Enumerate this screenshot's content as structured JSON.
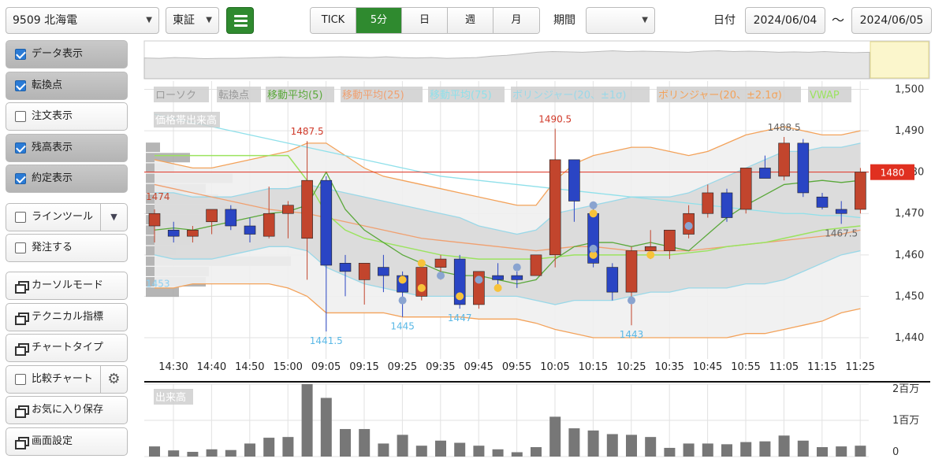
{
  "header": {
    "symbol": "9509 北海電",
    "market": "東証",
    "intervals": [
      "TICK",
      "5分",
      "日",
      "週",
      "月"
    ],
    "active_interval": "5分",
    "period_label": "期間",
    "period_value": "",
    "date_label": "日付",
    "date_from": "2024/06/04",
    "date_sep": "〜",
    "date_to": "2024/06/05"
  },
  "sidebar": {
    "items": [
      {
        "label": "データ表示",
        "type": "check",
        "checked": true
      },
      {
        "label": "転換点",
        "type": "check",
        "checked": true
      },
      {
        "label": "注文表示",
        "type": "check",
        "checked": false
      },
      {
        "label": "残高表示",
        "type": "check",
        "checked": true
      },
      {
        "label": "約定表示",
        "type": "check",
        "checked": true
      },
      {
        "label": "ラインツール",
        "type": "check-split",
        "checked": false
      },
      {
        "label": "発注する",
        "type": "check",
        "checked": false
      },
      {
        "label": "カーソルモード",
        "type": "window"
      },
      {
        "label": "テクニカル指標",
        "type": "window"
      },
      {
        "label": "チャートタイプ",
        "type": "window"
      },
      {
        "label": "比較チャート",
        "type": "check-gear",
        "checked": false
      },
      {
        "label": "お気に入り保存",
        "type": "window"
      },
      {
        "label": "画面設定",
        "type": "window"
      }
    ]
  },
  "colors": {
    "up": "#c2452d",
    "down": "#2a45c4",
    "ma5": "#5aa83a",
    "ma25": "#f0a070",
    "ma75": "#8fe0ea",
    "bb20": "#9ad8e8",
    "bb21": "#f3a25a",
    "vwap": "#9be35f",
    "price_line": "#e03020",
    "active": "#2f8a2f"
  },
  "chart_data": {
    "type": "candlestick",
    "legend": [
      {
        "label": "ローソク",
        "color": "#9a9a9a"
      },
      {
        "label": "転換点",
        "color": "#9a9a9a"
      },
      {
        "label": "移動平均(5)",
        "color": "#5aa83a"
      },
      {
        "label": "移動平均(25)",
        "color": "#f0a070"
      },
      {
        "label": "移動平均(75)",
        "color": "#8fe0ea"
      },
      {
        "label": "ボリンジャー(20、±1σ)",
        "color": "#9ad8e8"
      },
      {
        "label": "ボリンジャー(20、±2.1σ)",
        "color": "#f3a25a"
      },
      {
        "label": "VWAP",
        "color": "#9be35f"
      }
    ],
    "volume_profile_label": "価格帯出来高",
    "volume_label": "出来高",
    "ylim": [
      1436,
      1502
    ],
    "y_ticks": [
      1500,
      1490,
      1480,
      1470,
      1460,
      1450,
      1440
    ],
    "y_tick_labels": [
      "1,500",
      "1,490",
      "1,480",
      "1,470",
      "1,460",
      "1,450",
      "1,440"
    ],
    "current_price": 1480,
    "current_price_label": "1480",
    "volume_ticks": [
      {
        "v": 2000000,
        "label": "2百万"
      },
      {
        "v": 1000000,
        "label": "1百万"
      },
      {
        "v": 0,
        "label": "0"
      }
    ],
    "volume_max": 2000000,
    "x_labels": [
      "14:30",
      "14:40",
      "14:50",
      "15:00",
      "09:05",
      "09:15",
      "09:25",
      "09:35",
      "09:45",
      "09:55",
      "10:05",
      "10:15",
      "10:25",
      "10:35",
      "10:45",
      "10:55",
      "11:05",
      "11:15",
      "11:25"
    ],
    "candles": [
      {
        "o": 1467,
        "h": 1471,
        "l": 1463,
        "c": 1470
      },
      {
        "o": 1466,
        "h": 1468,
        "l": 1463,
        "c": 1464.5
      },
      {
        "o": 1464.5,
        "h": 1467,
        "l": 1463,
        "c": 1466
      },
      {
        "o": 1468,
        "h": 1471,
        "l": 1465,
        "c": 1471
      },
      {
        "o": 1471,
        "h": 1472,
        "l": 1466,
        "c": 1467
      },
      {
        "o": 1467,
        "h": 1469,
        "l": 1463,
        "c": 1465
      },
      {
        "o": 1464.5,
        "h": 1476.5,
        "l": 1464,
        "c": 1470
      },
      {
        "o": 1470,
        "h": 1473,
        "l": 1464,
        "c": 1472
      },
      {
        "o": 1464,
        "h": 1487.5,
        "l": 1454,
        "c": 1478
      },
      {
        "o": 1478,
        "h": 1479,
        "l": 1441.5,
        "c": 1457.5
      },
      {
        "o": 1458,
        "h": 1460,
        "l": 1450,
        "c": 1456
      },
      {
        "o": 1454,
        "h": 1458,
        "l": 1448,
        "c": 1458
      },
      {
        "o": 1457,
        "h": 1460,
        "l": 1451,
        "c": 1455
      },
      {
        "o": 1455,
        "h": 1456,
        "l": 1445,
        "c": 1451
      },
      {
        "o": 1450,
        "h": 1458,
        "l": 1449,
        "c": 1457
      },
      {
        "o": 1457,
        "h": 1460,
        "l": 1454,
        "c": 1459
      },
      {
        "o": 1459,
        "h": 1460,
        "l": 1447,
        "c": 1448
      },
      {
        "o": 1448,
        "h": 1456,
        "l": 1447,
        "c": 1456
      },
      {
        "o": 1455,
        "h": 1458,
        "l": 1452,
        "c": 1454
      },
      {
        "o": 1455,
        "h": 1456,
        "l": 1452,
        "c": 1454
      },
      {
        "o": 1455,
        "h": 1460,
        "l": 1455,
        "c": 1460
      },
      {
        "o": 1460,
        "h": 1490.5,
        "l": 1457,
        "c": 1483
      },
      {
        "o": 1483,
        "h": 1483,
        "l": 1468,
        "c": 1473
      },
      {
        "o": 1470,
        "h": 1472,
        "l": 1457,
        "c": 1458
      },
      {
        "o": 1457,
        "h": 1458,
        "l": 1449,
        "c": 1451
      },
      {
        "o": 1451,
        "h": 1462,
        "l": 1443,
        "c": 1461
      },
      {
        "o": 1461,
        "h": 1466,
        "l": 1459,
        "c": 1462
      },
      {
        "o": 1461,
        "h": 1466,
        "l": 1459,
        "c": 1466
      },
      {
        "o": 1465,
        "h": 1472,
        "l": 1464,
        "c": 1470
      },
      {
        "o": 1470,
        "h": 1477,
        "l": 1469,
        "c": 1475
      },
      {
        "o": 1475,
        "h": 1476,
        "l": 1468,
        "c": 1469
      },
      {
        "o": 1471,
        "h": 1481,
        "l": 1470,
        "c": 1481
      },
      {
        "o": 1481,
        "h": 1484,
        "l": 1479,
        "c": 1478.5
      },
      {
        "o": 1479,
        "h": 1488.5,
        "l": 1478,
        "c": 1487
      },
      {
        "o": 1487,
        "h": 1488,
        "l": 1474,
        "c": 1475
      },
      {
        "o": 1474,
        "h": 1475,
        "l": 1471,
        "c": 1471.5
      },
      {
        "o": 1471,
        "h": 1473,
        "l": 1467.5,
        "c": 1470
      },
      {
        "o": 1471,
        "h": 1481,
        "l": 1470,
        "c": 1480
      }
    ],
    "volumes": [
      280000,
      170000,
      130000,
      200000,
      180000,
      360000,
      520000,
      540000,
      2000000,
      1620000,
      760000,
      760000,
      360000,
      600000,
      300000,
      440000,
      380000,
      300000,
      200000,
      120000,
      260000,
      1100000,
      780000,
      720000,
      620000,
      600000,
      540000,
      240000,
      360000,
      360000,
      340000,
      400000,
      420000,
      580000,
      440000,
      260000,
      280000,
      300000
    ],
    "ma5": [
      1466,
      1466.5,
      1466,
      1467,
      1468,
      1469,
      1470,
      1470.5,
      1472,
      1480,
      1471,
      1466,
      1463,
      1460,
      1458,
      1456,
      1455,
      1455,
      1454,
      1453,
      1454,
      1459,
      1462,
      1463,
      1463,
      1462,
      1463,
      1462,
      1461,
      1465,
      1469,
      1472,
      1474.5,
      1477,
      1477.5,
      1478,
      1477.5,
      1478
    ],
    "ma25": [
      1477,
      1476,
      1475,
      1474,
      1473,
      1472,
      1471,
      1470.5,
      1470,
      1469,
      1468,
      1467,
      1466,
      1465,
      1464,
      1463.5,
      1463,
      1462.5,
      1462,
      1461.5,
      1461,
      1461.5,
      1462,
      1462,
      1461.5,
      1461,
      1461,
      1461,
      1461,
      1461.5,
      1462,
      1462.5,
      1463,
      1463.5,
      1464,
      1464.5,
      1465,
      1466
    ],
    "ma75": [
      1494,
      1493,
      1492,
      1491,
      1490,
      1489,
      1488,
      1487,
      1486,
      1485,
      1484,
      1483,
      1482,
      1481,
      1480,
      1479,
      1478.5,
      1478,
      1477.5,
      1477,
      1476.5,
      1476,
      1475.5,
      1475,
      1474.5,
      1474,
      1473.5,
      1473,
      1472.5,
      1472,
      1471.5,
      1471,
      1470.5,
      1470,
      1470,
      1469.5,
      1469.5,
      1469
    ],
    "vwap": [
      1484,
      1484,
      1484,
      1484,
      1484,
      1484,
      1484,
      1484,
      1478,
      1470,
      1466,
      1464,
      1463,
      1462,
      1461,
      1460,
      1459.5,
      1459,
      1459,
      1459,
      1459,
      1459.5,
      1460,
      1460,
      1460,
      1460,
      1460,
      1460,
      1460.5,
      1461,
      1462,
      1462.5,
      1463,
      1464,
      1465,
      1466,
      1466.5,
      1467
    ],
    "bb1_upper": [
      1475,
      1475,
      1474,
      1474,
      1474,
      1475,
      1476,
      1476,
      1477,
      1476,
      1475,
      1474,
      1473,
      1472,
      1471,
      1470,
      1469,
      1467,
      1466,
      1465,
      1466,
      1470,
      1471,
      1472,
      1473,
      1474,
      1474,
      1474,
      1475,
      1477,
      1479,
      1481,
      1483,
      1485,
      1485,
      1486,
      1486,
      1487
    ],
    "bb1_lower": [
      1460,
      1459,
      1459,
      1459,
      1460,
      1461,
      1462,
      1462,
      1461,
      1457,
      1455,
      1453,
      1452,
      1451,
      1450,
      1450,
      1450,
      1450,
      1450,
      1450,
      1449,
      1448,
      1449,
      1449,
      1449,
      1450,
      1451,
      1451,
      1452,
      1452,
      1452,
      1453,
      1453,
      1454,
      1456,
      1458,
      1460,
      1461
    ],
    "bb2_upper": [
      1483,
      1482,
      1481,
      1481,
      1482,
      1483,
      1484,
      1485,
      1487,
      1487,
      1484,
      1481,
      1479,
      1478,
      1477,
      1476,
      1475,
      1474,
      1473,
      1472,
      1472,
      1478,
      1482,
      1484,
      1485,
      1486,
      1486,
      1485,
      1484,
      1485,
      1487,
      1489,
      1490,
      1491,
      1490,
      1489,
      1489,
      1490
    ],
    "bb2_lower": [
      1452,
      1452,
      1453,
      1453,
      1453,
      1453,
      1453,
      1452,
      1450,
      1446,
      1446,
      1446,
      1446,
      1445,
      1445,
      1445,
      1445,
      1444.5,
      1444.5,
      1444.5,
      1443.5,
      1442,
      1441,
      1440,
      1440,
      1440,
      1440,
      1440,
      1440,
      1440,
      1440,
      1441,
      1441,
      1442,
      1443,
      1444,
      1446,
      1447
    ],
    "turning_points": [
      {
        "i": 8,
        "type": "high",
        "label": "1487.5"
      },
      {
        "i": 9,
        "type": "low",
        "label": "1441.5"
      },
      {
        "i": 13,
        "type": "low",
        "label": "1445"
      },
      {
        "i": 16,
        "type": "low",
        "label": "1447"
      },
      {
        "i": 21,
        "type": "high",
        "label": "1490.5"
      },
      {
        "i": 25,
        "type": "low",
        "label": "1443"
      },
      {
        "i": 33,
        "type": "high",
        "label": "1488.5"
      },
      {
        "i": 36,
        "type": "low",
        "label": "1467.5"
      }
    ],
    "edge_labels": [
      {
        "y": 1474,
        "label": "1474",
        "color": "#c2452d"
      },
      {
        "y": 1453,
        "label": "1453",
        "color": "#8ccff0"
      }
    ],
    "trade_markers_buy": [
      {
        "i": 13,
        "y": 1454
      },
      {
        "i": 14,
        "y": 1458
      },
      {
        "i": 14,
        "y": 1452
      },
      {
        "i": 16,
        "y": 1450
      },
      {
        "i": 18,
        "y": 1452
      },
      {
        "i": 23,
        "y": 1470
      },
      {
        "i": 23,
        "y": 1460
      },
      {
        "i": 26,
        "y": 1460
      }
    ],
    "trade_markers_sell": [
      {
        "i": 13,
        "y": 1449
      },
      {
        "i": 15,
        "y": 1455
      },
      {
        "i": 17,
        "y": 1454
      },
      {
        "i": 19,
        "y": 1457
      },
      {
        "i": 23,
        "y": 1472
      },
      {
        "i": 23,
        "y": 1461.5
      },
      {
        "i": 25,
        "y": 1449
      },
      {
        "i": 28,
        "y": 1467
      }
    ],
    "volume_profile": [
      {
        "price": 1486,
        "v": 0.09
      },
      {
        "price": 1483.5,
        "v": 0.28
      },
      {
        "price": 1481,
        "v": 0.18
      },
      {
        "price": 1478.5,
        "v": 0.55
      },
      {
        "price": 1476,
        "v": 0.38
      },
      {
        "price": 1473.5,
        "v": 0.46
      },
      {
        "price": 1471,
        "v": 0.74
      },
      {
        "price": 1468.5,
        "v": 0.6
      },
      {
        "price": 1466,
        "v": 0.2
      },
      {
        "price": 1463.5,
        "v": 0.29
      },
      {
        "price": 1461,
        "v": 0.19
      },
      {
        "price": 1458.5,
        "v": 0.92
      },
      {
        "price": 1456,
        "v": 0.4
      },
      {
        "price": 1453.5,
        "v": 0.38
      },
      {
        "price": 1451,
        "v": 0.21
      }
    ]
  }
}
